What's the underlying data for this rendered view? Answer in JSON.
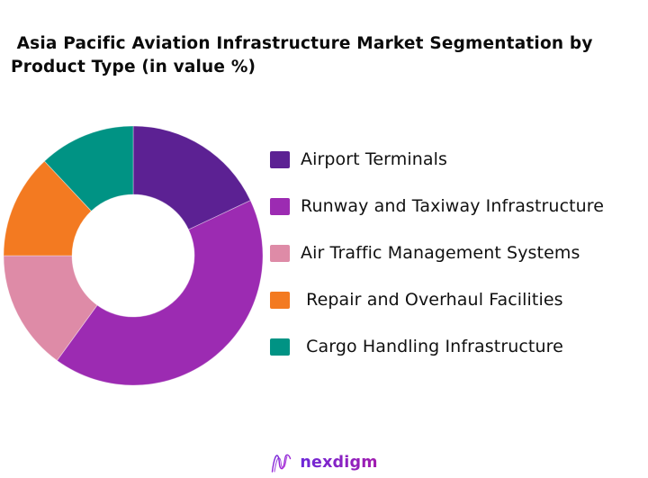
{
  "title": {
    "lines": [
      " Asia Pacific Aviation Infrastructure Market Segmentation by",
      "Product Type (in value %)"
    ]
  },
  "chart_data": {
    "type": "pie",
    "subtype": "donut",
    "title": "Asia Pacific Aviation Infrastructure Market Segmentation by Product Type (in value %)",
    "categories": [
      "Airport Terminals",
      "Runway and Taxiway Infrastructure",
      "Air Traffic Management Systems",
      "Repair and Overhaul Facilities",
      "Cargo Handling Infrastructure"
    ],
    "values": [
      18,
      42,
      15,
      13,
      12
    ],
    "unit": "%",
    "colors": [
      "#5C2193",
      "#9C2BB2",
      "#DE8BA7",
      "#F37A21",
      "#009384"
    ],
    "start_angle_deg": 0,
    "direction": "clockwise",
    "inner_radius_ratio": 0.472,
    "legend_position": "right",
    "data_labels": false
  },
  "legend": {
    "items": [
      {
        "label": "Airport Terminals",
        "color": "#5C2193"
      },
      {
        "label": "Runway and Taxiway Infrastructure",
        "color": "#9C2BB2"
      },
      {
        "label": "Air Traffic Management Systems",
        "color": "#DE8BA7"
      },
      {
        "label": " Repair and Overhaul Facilities",
        "color": "#F37A21"
      },
      {
        "label": " Cargo Handling Infrastructure",
        "color": "#009384"
      }
    ]
  },
  "footer": {
    "brand": "nexdigm",
    "brand_gradient_start": "#6d28d9",
    "brand_gradient_end": "#a21caf"
  }
}
